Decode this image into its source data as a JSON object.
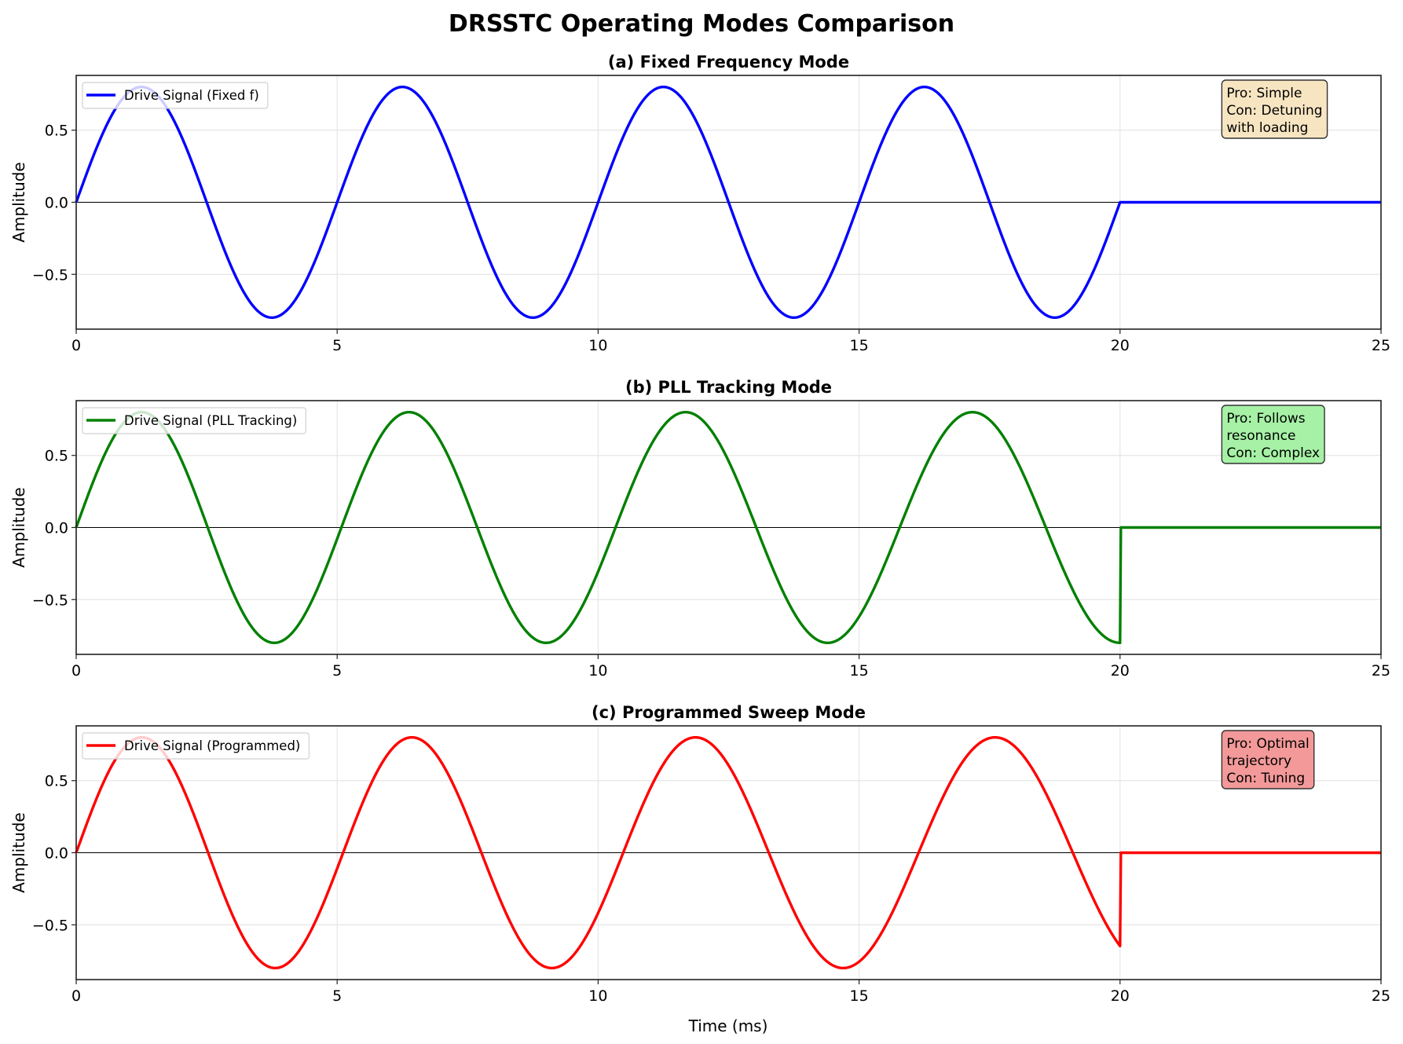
{
  "chart_data": {
    "title": "DRSSTC Operating Modes Comparison",
    "xlabel": "Time (ms)",
    "panels": [
      {
        "type": "line",
        "title": "(a) Fixed Frequency Mode",
        "ylabel": "Amplitude",
        "xlim": [
          0,
          25
        ],
        "ylim": [
          -0.88,
          0.88
        ],
        "xticks": [
          0,
          5,
          10,
          15,
          20,
          25
        ],
        "yticks": [
          -0.5,
          0.0,
          0.5
        ],
        "ytick_labels": [
          "−0.5",
          "0.0",
          "0.5"
        ],
        "grid": true,
        "zero_line": true,
        "legend_placement": "top-left",
        "series": [
          {
            "name": "Drive Signal (Fixed f)",
            "color": "#0000ff",
            "waveform": "sine",
            "amplitude": 0.8,
            "pulse_end_ms": 20,
            "freq_start_khz": 0.2,
            "freq_end_khz": 0.2,
            "value_after_pulse": 0
          }
        ],
        "annotation": {
          "lines": [
            "Pro: Simple",
            "Con: Detuning",
            "with loading"
          ],
          "box_color": "#f5deb3"
        }
      },
      {
        "type": "line",
        "title": "(b) PLL Tracking Mode",
        "ylabel": "Amplitude",
        "xlim": [
          0,
          25
        ],
        "ylim": [
          -0.88,
          0.88
        ],
        "xticks": [
          0,
          5,
          10,
          15,
          20,
          25
        ],
        "yticks": [
          -0.5,
          0.0,
          0.5
        ],
        "ytick_labels": [
          "−0.5",
          "0.0",
          "0.5"
        ],
        "grid": true,
        "zero_line": true,
        "legend_placement": "top-left",
        "series": [
          {
            "name": "Drive Signal (PLL Tracking)",
            "color": "#008000",
            "waveform": "sine",
            "amplitude": 0.8,
            "pulse_end_ms": 20,
            "freq_start_khz": 0.2,
            "freq_end_khz": 0.175,
            "value_after_pulse": 0
          }
        ],
        "annotation": {
          "lines": [
            "Pro: Follows",
            "resonance",
            "Con: Complex"
          ],
          "box_color": "#90ee90"
        }
      },
      {
        "type": "line",
        "title": "(c) Programmed Sweep Mode",
        "ylabel": "Amplitude",
        "xlim": [
          0,
          25
        ],
        "ylim": [
          -0.88,
          0.88
        ],
        "xticks": [
          0,
          5,
          10,
          15,
          20,
          25
        ],
        "yticks": [
          -0.5,
          0.0,
          0.5
        ],
        "ytick_labels": [
          "−0.5",
          "0.0",
          "0.5"
        ],
        "grid": true,
        "zero_line": true,
        "legend_placement": "top-left",
        "series": [
          {
            "name": "Drive Signal (Programmed)",
            "color": "#ff0000",
            "waveform": "sine",
            "amplitude": 0.8,
            "pulse_end_ms": 20,
            "freq_start_khz": 0.2,
            "freq_end_khz": 0.165,
            "value_after_pulse": 0
          }
        ],
        "annotation": {
          "lines": [
            "Pro: Optimal",
            "trajectory",
            "Con: Tuning"
          ],
          "box_color": "#f08080"
        }
      }
    ]
  }
}
